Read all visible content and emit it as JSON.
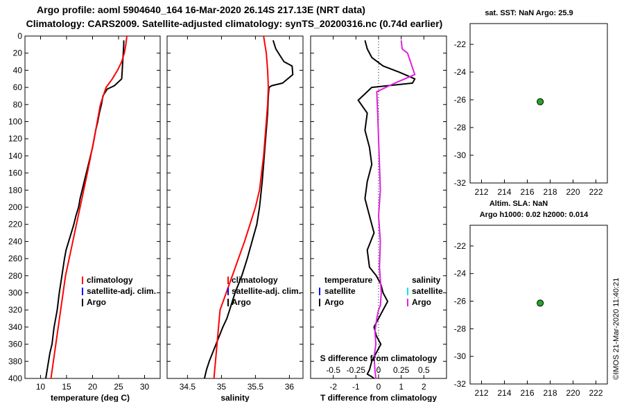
{
  "header": {
    "title_line1": "Argo profile: aoml 5904640_164 16-Mar-2020 26.14S 217.13E (NRT data)",
    "title_line2": "Climatology: CARS2009. Satellite-adjusted climatology: synTS_20200316.nc (0.74d earlier)"
  },
  "colors": {
    "argo": "#000000",
    "climatology": "#ff0000",
    "satellite": "#0000ff",
    "satellite_salinity": "#00e5ee",
    "argo_salinity": "#e020e0",
    "marker_fill": "#22aa22"
  },
  "depth_axis": {
    "ticks": [
      0,
      20,
      40,
      60,
      80,
      100,
      120,
      140,
      160,
      180,
      200,
      220,
      240,
      260,
      280,
      300,
      320,
      340,
      360,
      380,
      400
    ],
    "ylim": [
      0,
      400
    ]
  },
  "legend": {
    "climatology": "climatology",
    "satellite_adj": "satellite-adj. clim.",
    "argo": "Argo",
    "temperature_head": "temperature",
    "salinity_head": "salinity",
    "satellite": "satellite"
  },
  "chart_data": [
    {
      "name": "temperature-panel",
      "type": "line",
      "xlabel": "temperature (deg C)",
      "xlim": [
        7,
        33
      ],
      "xticks": [
        10,
        15,
        20,
        25,
        30
      ],
      "ylim": [
        0,
        400
      ],
      "series": [
        {
          "name": "Argo",
          "x": [
            26.0,
            26.0,
            25.9,
            25.8,
            25.7,
            25.6,
            24.2,
            22.8,
            22.0,
            21.7,
            21.3,
            21.0,
            20.6,
            20.3,
            20.0,
            19.6,
            19.2,
            18.8,
            18.4,
            18.0,
            17.6,
            17.3,
            16.8,
            16.4,
            15.9,
            15.4,
            14.9,
            14.6,
            14.1,
            13.6,
            13.2,
            12.6,
            12.2,
            11.8,
            11.4,
            11.0
          ],
          "depth": [
            5,
            10,
            20,
            30,
            40,
            50,
            58,
            62,
            70,
            80,
            90,
            100,
            110,
            120,
            130,
            140,
            150,
            160,
            170,
            180,
            190,
            200,
            210,
            220,
            230,
            240,
            250,
            260,
            280,
            300,
            320,
            340,
            360,
            370,
            385,
            400
          ]
        },
        {
          "name": "climatology",
          "x": [
            26.6,
            26.4,
            26.1,
            25.6,
            24.8,
            23.8,
            22.6,
            21.5,
            20.3,
            19.0,
            17.6,
            16.2,
            14.8,
            13.4,
            12.0
          ],
          "depth": [
            0,
            10,
            20,
            30,
            40,
            50,
            60,
            80,
            120,
            160,
            200,
            240,
            280,
            340,
            400
          ]
        }
      ]
    },
    {
      "name": "salinity-panel",
      "type": "line",
      "xlabel": "salinity",
      "xlim": [
        34.2,
        36.2
      ],
      "xticks": [
        34.5,
        35,
        35.5,
        36
      ],
      "ylim": [
        0,
        400
      ],
      "series": [
        {
          "name": "Argo",
          "x": [
            35.76,
            35.8,
            35.88,
            35.92,
            36.04,
            36.05,
            35.9,
            35.74,
            35.7,
            35.69,
            35.68,
            35.66,
            35.64,
            35.62,
            35.6,
            35.56,
            35.52,
            35.45,
            35.38,
            35.3,
            35.2,
            35.12,
            35.08,
            35.02,
            34.92,
            34.82,
            34.78,
            34.75
          ],
          "depth": [
            5,
            15,
            25,
            30,
            35,
            45,
            55,
            58,
            60,
            70,
            90,
            110,
            130,
            150,
            170,
            200,
            220,
            240,
            260,
            280,
            300,
            320,
            330,
            340,
            360,
            380,
            390,
            400
          ]
        },
        {
          "name": "climatology",
          "x": [
            35.62,
            35.64,
            35.66,
            35.68,
            35.69,
            35.68,
            35.66,
            35.62,
            35.56,
            35.5,
            35.42,
            35.34,
            35.25,
            35.16,
            35.07,
            34.98,
            34.89
          ],
          "depth": [
            0,
            10,
            20,
            40,
            60,
            80,
            100,
            140,
            180,
            200,
            220,
            240,
            260,
            280,
            300,
            320,
            400
          ]
        }
      ]
    },
    {
      "name": "difference-panel",
      "type": "line",
      "xlabel": "T difference from climatology",
      "xlabel_top": "S difference from climatology",
      "xlim": [
        -3,
        3
      ],
      "xticks": [
        -2,
        -1,
        0,
        1,
        2
      ],
      "xticks_top": [
        "-0.5",
        "-0.25",
        "0",
        "0.25",
        "0.5"
      ],
      "ylim": [
        0,
        400
      ],
      "series": [
        {
          "name": "temperature (Argo - clim)",
          "x": [
            -0.6,
            -0.5,
            -0.3,
            0.2,
            0.9,
            1.6,
            1.5,
            -0.3,
            -0.9,
            -0.5,
            -0.6,
            -0.4,
            -0.3,
            -0.5,
            -0.6,
            -0.4,
            -0.2,
            -0.5,
            -0.4,
            -0.1,
            0.1,
            0.2,
            0.4,
            0.2,
            0.0,
            -0.2,
            -0.1,
            0.1,
            -0.1,
            -0.3,
            -0.4,
            -0.5,
            -0.3,
            -0.2
          ],
          "depth": [
            5,
            15,
            25,
            35,
            42,
            50,
            55,
            60,
            75,
            90,
            110,
            130,
            150,
            170,
            190,
            210,
            230,
            250,
            270,
            280,
            290,
            300,
            310,
            320,
            330,
            340,
            350,
            360,
            370,
            380,
            390,
            395,
            398,
            400
          ]
        },
        {
          "name": "salinity (Argo - clim)",
          "x": [
            0.25,
            0.26,
            0.32,
            0.4,
            0.18,
            -0.02,
            -0.01,
            0.0,
            0.01,
            0.02,
            0.0,
            0.02,
            0.01,
            0.03,
            0.02,
            0.0,
            -0.02,
            -0.04,
            -0.03,
            -0.05,
            -0.04,
            -0.03
          ],
          "depth": [
            5,
            15,
            20,
            45,
            55,
            65,
            90,
            120,
            150,
            180,
            210,
            240,
            270,
            300,
            315,
            320,
            330,
            345,
            360,
            375,
            390,
            400
          ]
        }
      ]
    },
    {
      "name": "sst-map",
      "type": "scatter",
      "title": "sat. SST: NaN Argo: 25.9",
      "xlim": [
        211,
        223
      ],
      "ylim": [
        -32,
        -20.5
      ],
      "xticks": [
        212,
        214,
        216,
        218,
        220,
        222
      ],
      "yticks": [
        -22,
        -24,
        -26,
        -28,
        -30,
        -32
      ],
      "points": [
        {
          "x": 217.13,
          "y": -26.14
        }
      ]
    },
    {
      "name": "sla-map",
      "type": "scatter",
      "title": "Altim. SLA: NaN",
      "subtitle": "Argo h1000: 0.02 h2000: 0.014",
      "xlim": [
        211,
        223
      ],
      "ylim": [
        -32,
        -20.5
      ],
      "xticks": [
        212,
        214,
        216,
        218,
        220,
        222
      ],
      "yticks": [
        -22,
        -24,
        -26,
        -28,
        -30,
        -32
      ],
      "points": [
        {
          "x": 217.13,
          "y": -26.14
        }
      ]
    }
  ],
  "footer": {
    "credit": "©IMOS 21-Mar-2020 11:40:21"
  }
}
